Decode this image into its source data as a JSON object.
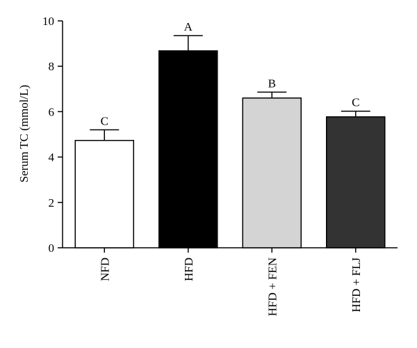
{
  "chart_data": {
    "type": "bar",
    "title": "",
    "xlabel": "",
    "ylabel": "Serum TC (mmol/L)",
    "ylim": [
      0,
      10
    ],
    "yticks": [
      "0",
      "2",
      "4",
      "6",
      "8",
      "10"
    ],
    "grid": false,
    "legend": "none",
    "categories": [
      "NFD",
      "HFD",
      "HFD + FEN",
      "HFD + FLJ"
    ],
    "values": [
      4.73,
      8.68,
      6.6,
      5.77
    ],
    "errors": [
      0.47,
      0.67,
      0.26,
      0.25
    ],
    "significance": [
      "C",
      "A",
      "B",
      "C"
    ],
    "colors": [
      "#ffffff",
      "#000000",
      "#d4d4d4",
      "#333333"
    ]
  }
}
